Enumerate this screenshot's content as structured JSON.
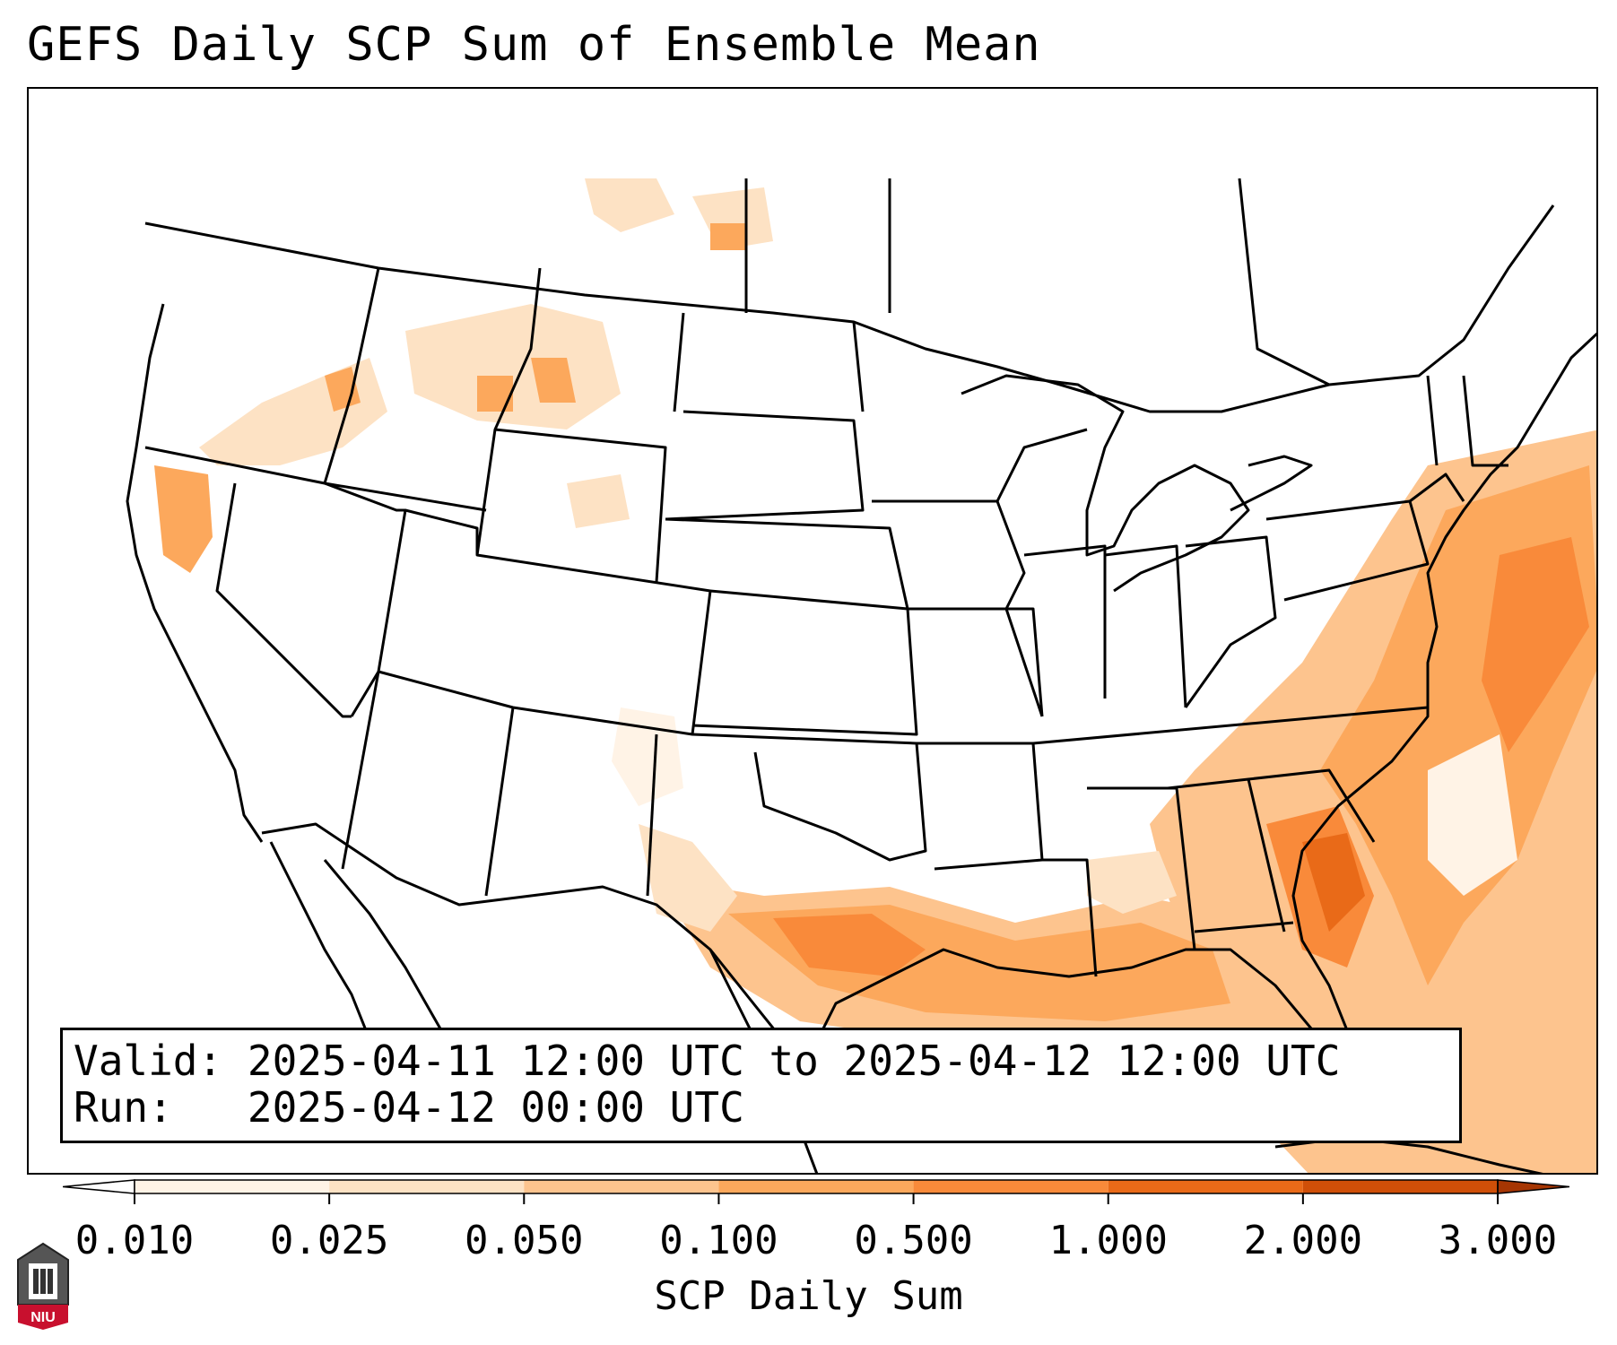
{
  "title": "GEFS Daily SCP Sum of Ensemble Mean",
  "info": {
    "valid_label": "Valid:",
    "valid_value": "2025-04-11 12:00 UTC to 2025-04-12 12:00 UTC",
    "run_label": "Run:",
    "run_value": "2025-04-12 00:00 UTC"
  },
  "colorbar": {
    "label": "SCP Daily Sum",
    "ticks": [
      "0.010",
      "0.025",
      "0.050",
      "0.100",
      "0.500",
      "1.000",
      "2.000",
      "3.000"
    ],
    "colors": [
      "#fff3e6",
      "#fde2c4",
      "#fdc48e",
      "#fca85c",
      "#f98a3a",
      "#e96a18",
      "#cf4f08"
    ],
    "extend_min_color": "#ffffff",
    "extend_max_color": "#a63603"
  },
  "logo": {
    "text": "NIU",
    "icon": "niu-logo-icon"
  }
}
